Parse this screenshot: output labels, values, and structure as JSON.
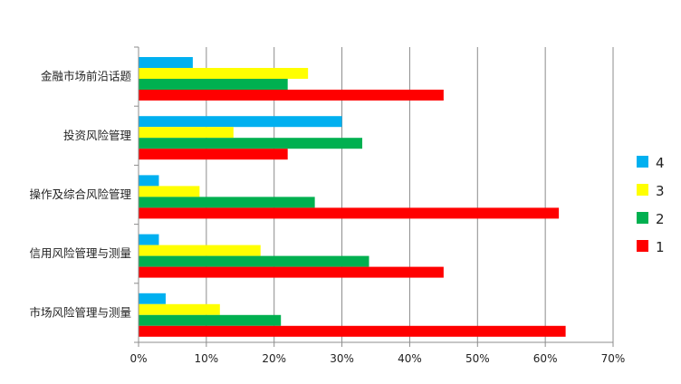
{
  "chart_data": {
    "type": "bar",
    "orientation": "horizontal",
    "categories": [
      "金融市场前沿话题",
      "投资风险管理",
      "操作及综合风险管理",
      "信用风险管理与测量",
      "市场风险管理与测量"
    ],
    "series": [
      {
        "name": "4",
        "color": "#00B0F0",
        "values": [
          8,
          30,
          3,
          3,
          4
        ]
      },
      {
        "name": "3",
        "color": "#FFFF00",
        "values": [
          25,
          14,
          9,
          18,
          12
        ]
      },
      {
        "name": "2",
        "color": "#00B050",
        "values": [
          22,
          33,
          26,
          34,
          21
        ]
      },
      {
        "name": "1",
        "color": "#FF0000",
        "values": [
          45,
          22,
          62,
          45,
          63
        ]
      }
    ],
    "xlim": [
      0,
      70
    ],
    "xticks": [
      0,
      10,
      20,
      30,
      40,
      50,
      60,
      70
    ],
    "xtick_labels": [
      "0%",
      "10%",
      "20%",
      "30%",
      "40%",
      "50%",
      "60%",
      "70%"
    ],
    "grid": "vertical",
    "legend_placement": "right",
    "legend_order": [
      "4",
      "3",
      "2",
      "1"
    ]
  }
}
